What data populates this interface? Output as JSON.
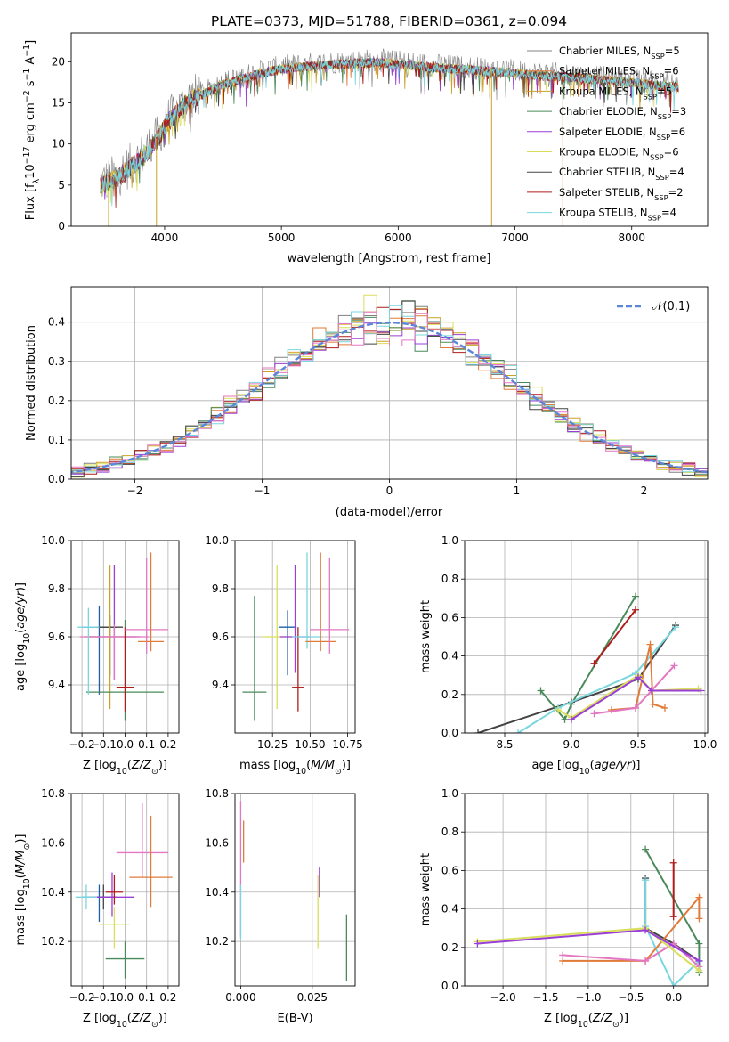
{
  "title": "PLATE=0373, MJD=51788, FIBERID=0361, z=0.094",
  "colors": {
    "gray": "#808080",
    "orange": "#e07b39",
    "gold": "#c9a227",
    "green": "#4a8a5a",
    "purple": "#9a3fd6",
    "yellow": "#d9df5a",
    "darkgray": "#444444",
    "red": "#b01c1c",
    "cyan": "#7ad6de",
    "pink": "#e377c2",
    "blue": "#1f5fa8",
    "normal": "#5b86d9",
    "grid": "#b0b0b0"
  },
  "chart_data": [
    {
      "type": "line",
      "title": "PLATE=0373, MJD=51788, FIBERID=0361, z=0.094",
      "xlabel": "wavelength [Angstrom, rest frame]",
      "ylabel": "Flux [f_λ 10^-17 erg cm^-2 s^-1 A^-1]",
      "xlim": [
        3200,
        8650
      ],
      "ylim": [
        0,
        23.5
      ],
      "xticks": [
        4000,
        5000,
        6000,
        7000,
        8000
      ],
      "yticks": [
        0,
        5,
        10,
        15,
        20
      ],
      "grid": false,
      "legend_position": "top-right",
      "series": [
        {
          "name": "Chabrier MILES, N_SSP=5",
          "color": "gray"
        },
        {
          "name": "Salpeter MILES, N_SSP=6",
          "color": "orange"
        },
        {
          "name": "Kroupa MILES, N_SSP=5",
          "color": "gold"
        },
        {
          "name": "Chabrier ELODIE, N_SSP=3",
          "color": "green"
        },
        {
          "name": "Salpeter ELODIE, N_SSP=6",
          "color": "purple"
        },
        {
          "name": "Kroupa ELODIE, N_SSP=6",
          "color": "yellow"
        },
        {
          "name": "Chabrier STELIB, N_SSP=4",
          "color": "darkgray"
        },
        {
          "name": "Salpeter STELIB, N_SSP=2",
          "color": "red"
        },
        {
          "name": "Kroupa STELIB, N_SSP=4",
          "color": "cyan"
        }
      ],
      "continuum": {
        "x": [
          3450,
          3600,
          3800,
          3950,
          4000,
          4200,
          4500,
          4800,
          5000,
          5200,
          5500,
          5800,
          6000,
          6300,
          6600,
          6900,
          7200,
          7500,
          7800,
          8100,
          8400
        ],
        "y": [
          5.3,
          6.2,
          8.5,
          11.0,
          12.5,
          15.5,
          17.5,
          18.8,
          19.4,
          19.7,
          20.0,
          20.2,
          20.0,
          19.6,
          19.3,
          19.0,
          18.6,
          18.4,
          18.0,
          17.6,
          17.2
        ]
      },
      "data_range": [
        3450,
        8400
      ],
      "absorption_spikes": [
        {
          "x": 3520,
          "y": 0
        },
        {
          "x": 3930,
          "y": 0
        },
        {
          "x": 6800,
          "y": 0
        },
        {
          "x": 7410,
          "y": 0
        }
      ]
    },
    {
      "type": "line",
      "xlabel": "(data-model)/error",
      "ylabel": "Normed distribution",
      "xlim": [
        -2.5,
        2.5
      ],
      "ylim": [
        0,
        0.49
      ],
      "xticks": [
        -2,
        -1,
        0,
        1,
        2
      ],
      "yticks": [
        0.0,
        0.1,
        0.2,
        0.3,
        0.4
      ],
      "grid": true,
      "legend_position": "top-right",
      "reference": {
        "name": "𝒩(0,1)",
        "mean": 0,
        "sigma": 1,
        "color": "normal"
      },
      "bin_width": 0.1,
      "histogram_colors": [
        "gray",
        "orange",
        "gold",
        "green",
        "purple",
        "yellow",
        "darkgray",
        "red",
        "cyan",
        "pink"
      ]
    },
    {
      "type": "scatter",
      "xlabel": "Z [log10(Z/Z⊙)]",
      "ylabel": "age [log10(age/yr)]",
      "xlim": [
        -0.25,
        0.25
      ],
      "ylim": [
        9.2,
        10.0
      ],
      "xticks": [
        -0.2,
        -0.1,
        0.0,
        0.1,
        0.2
      ],
      "yticks": [
        9.4,
        9.6,
        9.8,
        10.0
      ],
      "grid": true,
      "points": [
        {
          "x": -0.12,
          "y": 9.64,
          "xerr": 0.08,
          "yerr_lo": 0.28,
          "yerr_hi": 0.09,
          "color": "blue"
        },
        {
          "x": -0.07,
          "y": 9.64,
          "xerr": 0.06,
          "yerr_lo": 0.2,
          "yerr_hi": 0.05,
          "color": "darkgray"
        },
        {
          "x": -0.07,
          "y": 9.6,
          "xerr": 0.12,
          "yerr_lo": 0.3,
          "yerr_hi": 0.3,
          "color": "gold"
        },
        {
          "x": -0.05,
          "y": 9.6,
          "xerr": 0.12,
          "yerr_lo": 0.18,
          "yerr_hi": 0.3,
          "color": "purple"
        },
        {
          "x": -0.05,
          "y": 9.6,
          "xerr": 0.16,
          "yerr_lo": 0.18,
          "yerr_hi": 0.05,
          "color": "pink"
        },
        {
          "x": 0.0,
          "y": 9.37,
          "xerr": 0.18,
          "yerr_lo": 0.12,
          "yerr_hi": 0.3,
          "color": "green"
        },
        {
          "x": 0.0,
          "y": 9.39,
          "xerr": 0.04,
          "yerr_lo": 0.1,
          "yerr_hi": 0.25,
          "color": "red"
        },
        {
          "x": 0.1,
          "y": 9.63,
          "xerr": 0.1,
          "yerr_lo": 0.1,
          "yerr_hi": 0.3,
          "color": "pink"
        },
        {
          "x": 0.12,
          "y": 9.58,
          "xerr": 0.06,
          "yerr_lo": 0.04,
          "yerr_hi": 0.37,
          "color": "orange"
        },
        {
          "x": -0.17,
          "y": 9.64,
          "xerr": 0.05,
          "yerr_lo": 0.28,
          "yerr_hi": 0.08,
          "color": "cyan"
        }
      ]
    },
    {
      "type": "scatter",
      "xlabel": "mass [log10(M/M⊙)]",
      "xlim": [
        10.0,
        10.8
      ],
      "ylim": [
        9.2,
        10.0
      ],
      "xticks": [
        10.25,
        10.5,
        10.75
      ],
      "xtick_labels": [
        "10.25",
        "10.50",
        "10.75"
      ],
      "yticks": [
        9.4,
        9.6,
        9.8,
        10.0
      ],
      "grid": true,
      "points": [
        {
          "x": 10.13,
          "y": 9.37,
          "xerr": 0.08,
          "yerr_lo": 0.12,
          "yerr_hi": 0.4,
          "color": "green"
        },
        {
          "x": 10.28,
          "y": 9.6,
          "xerr": 0.1,
          "yerr_lo": 0.3,
          "yerr_hi": 0.3,
          "color": "yellow"
        },
        {
          "x": 10.35,
          "y": 9.64,
          "xerr": 0.06,
          "yerr_lo": 0.2,
          "yerr_hi": 0.07,
          "color": "blue"
        },
        {
          "x": 10.4,
          "y": 9.6,
          "xerr": 0.1,
          "yerr_lo": 0.15,
          "yerr_hi": 0.3,
          "color": "purple"
        },
        {
          "x": 10.42,
          "y": 9.39,
          "xerr": 0.04,
          "yerr_lo": 0.1,
          "yerr_hi": 0.25,
          "color": "red"
        },
        {
          "x": 10.48,
          "y": 9.6,
          "xerr": 0.1,
          "yerr_lo": 0.05,
          "yerr_hi": 0.35,
          "color": "cyan"
        },
        {
          "x": 10.57,
          "y": 9.58,
          "xerr": 0.1,
          "yerr_lo": 0.04,
          "yerr_hi": 0.37,
          "color": "orange"
        },
        {
          "x": 10.63,
          "y": 9.63,
          "xerr": 0.13,
          "yerr_lo": 0.1,
          "yerr_hi": 0.3,
          "color": "pink"
        }
      ]
    },
    {
      "type": "line",
      "xlabel": "age [log10(age/yr)]",
      "ylabel": "mass weight",
      "xlim": [
        8.2,
        10.02
      ],
      "ylim": [
        0,
        1.0
      ],
      "xticks": [
        8.5,
        9.0,
        9.5,
        10.0
      ],
      "yticks": [
        0.0,
        0.2,
        0.4,
        0.6,
        0.8,
        1.0
      ],
      "grid": true,
      "series": [
        {
          "color": "darkgray",
          "x": [
            8.3,
            9.0,
            9.5,
            9.78
          ],
          "y": [
            0.0,
            0.16,
            0.28,
            0.56
          ]
        },
        {
          "color": "green",
          "x": [
            8.77,
            8.95,
            9.0,
            9.48
          ],
          "y": [
            0.22,
            0.07,
            0.15,
            0.71
          ]
        },
        {
          "color": "red",
          "x": [
            9.17,
            9.48
          ],
          "y": [
            0.36,
            0.64
          ]
        },
        {
          "color": "cyan",
          "x": [
            8.6,
            8.9,
            9.48,
            9.78
          ],
          "y": [
            0.0,
            0.13,
            0.31,
            0.55
          ]
        },
        {
          "color": "orange",
          "x": [
            9.3,
            9.48,
            9.59,
            9.61,
            9.7
          ],
          "y": [
            0.12,
            0.13,
            0.46,
            0.15,
            0.13
          ]
        },
        {
          "color": "pink",
          "x": [
            9.17,
            9.48,
            9.6,
            9.77
          ],
          "y": [
            0.1,
            0.13,
            0.22,
            0.35
          ]
        },
        {
          "color": "yellow",
          "x": [
            8.9,
            9.0,
            9.5,
            9.6,
            9.95
          ],
          "y": [
            0.12,
            0.08,
            0.3,
            0.22,
            0.23
          ]
        },
        {
          "color": "purple",
          "x": [
            9.0,
            9.5,
            9.6,
            9.97
          ],
          "y": [
            0.07,
            0.29,
            0.22,
            0.22
          ]
        }
      ]
    },
    {
      "type": "scatter",
      "xlabel": "Z [log10(Z/Z⊙)]",
      "ylabel": "mass [log10(M/M⊙)]",
      "xlim": [
        -0.25,
        0.25
      ],
      "ylim": [
        10.02,
        10.8
      ],
      "xticks": [
        -0.2,
        -0.1,
        0.0,
        0.1,
        0.2
      ],
      "yticks": [
        10.2,
        10.4,
        10.6,
        10.8
      ],
      "grid": true,
      "points": [
        {
          "x": -0.12,
          "y": 10.38,
          "xerr": 0.08,
          "yerr_lo": 0.1,
          "yerr_hi": 0.05,
          "color": "blue"
        },
        {
          "x": -0.1,
          "y": 10.38,
          "xerr": 0.06,
          "yerr_lo": 0.05,
          "yerr_hi": 0.05,
          "color": "darkgray"
        },
        {
          "x": -0.05,
          "y": 10.27,
          "xerr": 0.07,
          "yerr_lo": 0.1,
          "yerr_hi": 0.07,
          "color": "yellow"
        },
        {
          "x": -0.06,
          "y": 10.38,
          "xerr": 0.1,
          "yerr_lo": 0.08,
          "yerr_hi": 0.1,
          "color": "purple"
        },
        {
          "x": -0.05,
          "y": 10.4,
          "xerr": 0.04,
          "yerr_lo": 0.05,
          "yerr_hi": 0.07,
          "color": "red"
        },
        {
          "x": 0.0,
          "y": 10.13,
          "xerr": 0.09,
          "yerr_lo": 0.08,
          "yerr_hi": 0.07,
          "color": "green"
        },
        {
          "x": 0.08,
          "y": 10.56,
          "xerr": 0.12,
          "yerr_lo": 0.1,
          "yerr_hi": 0.2,
          "color": "pink"
        },
        {
          "x": 0.12,
          "y": 10.46,
          "xerr": 0.1,
          "yerr_lo": 0.12,
          "yerr_hi": 0.25,
          "color": "orange"
        },
        {
          "x": -0.18,
          "y": 10.38,
          "xerr": 0.05,
          "yerr_lo": 0.05,
          "yerr_hi": 0.05,
          "color": "cyan"
        }
      ]
    },
    {
      "type": "scatter",
      "xlabel": "E(B-V)",
      "xlim": [
        -0.002,
        0.04
      ],
      "ylim": [
        10.02,
        10.8
      ],
      "xticks": [
        0.0,
        0.025
      ],
      "xtick_labels": [
        "0.000",
        "0.025"
      ],
      "yticks": [
        10.2,
        10.4,
        10.6,
        10.8
      ],
      "grid": true,
      "points": [
        {
          "x": 0.0,
          "y": 10.5,
          "xerr": 0,
          "yerr_lo": 0.28,
          "yerr_hi": 0.27,
          "color": "pink"
        },
        {
          "x": 0.0,
          "y": 10.32,
          "xerr": 0,
          "yerr_lo": 0.11,
          "yerr_hi": 0.11,
          "color": "cyan"
        },
        {
          "x": 0.001,
          "y": 10.59,
          "xerr": 0,
          "yerr_lo": 0.07,
          "yerr_hi": 0.1,
          "color": "orange"
        },
        {
          "x": 0.027,
          "y": 10.37,
          "xerr": 0,
          "yerr_lo": 0.2,
          "yerr_hi": 0.1,
          "color": "yellow"
        },
        {
          "x": 0.0275,
          "y": 10.43,
          "xerr": 0,
          "yerr_lo": 0.05,
          "yerr_hi": 0.07,
          "color": "purple"
        },
        {
          "x": 0.037,
          "y": 10.17,
          "xerr": 0,
          "yerr_lo": 0.13,
          "yerr_hi": 0.14,
          "color": "green"
        }
      ]
    },
    {
      "type": "line",
      "xlabel": "Z [log10(Z/Z⊙)]",
      "ylabel": "mass weight",
      "xlim": [
        -2.45,
        0.4
      ],
      "ylim": [
        0,
        1.0
      ],
      "xticks": [
        -2.0,
        -1.5,
        -1.0,
        -0.5,
        0.0
      ],
      "yticks": [
        0.0,
        0.2,
        0.4,
        0.6,
        0.8,
        1.0
      ],
      "grid": true,
      "series": [
        {
          "color": "darkgray",
          "x": [
            -0.33,
            -0.33,
            0.0,
            0.3
          ],
          "y": [
            0.56,
            0.3,
            0.22,
            0.13
          ]
        },
        {
          "color": "green",
          "x": [
            -0.33,
            0.3,
            0.3
          ],
          "y": [
            0.71,
            0.22,
            0.07
          ]
        },
        {
          "color": "red",
          "x": [
            0.0,
            0.0
          ],
          "y": [
            0.36,
            0.64
          ]
        },
        {
          "color": "cyan",
          "x": [
            -0.33,
            -0.33,
            0.0,
            0.3
          ],
          "y": [
            0.55,
            0.31,
            0.0,
            0.13
          ]
        },
        {
          "color": "orange",
          "x": [
            -1.3,
            -0.33,
            0.3,
            0.3
          ],
          "y": [
            0.13,
            0.13,
            0.46,
            0.35
          ]
        },
        {
          "color": "pink",
          "x": [
            -1.3,
            -0.33,
            0.0,
            0.3
          ],
          "y": [
            0.16,
            0.13,
            0.22,
            0.1
          ]
        },
        {
          "color": "yellow",
          "x": [
            -2.3,
            -0.33,
            0.3
          ],
          "y": [
            0.23,
            0.3,
            0.08
          ]
        },
        {
          "color": "purple",
          "x": [
            -2.3,
            -0.33,
            0.3
          ],
          "y": [
            0.22,
            0.29,
            0.13
          ]
        }
      ]
    }
  ]
}
